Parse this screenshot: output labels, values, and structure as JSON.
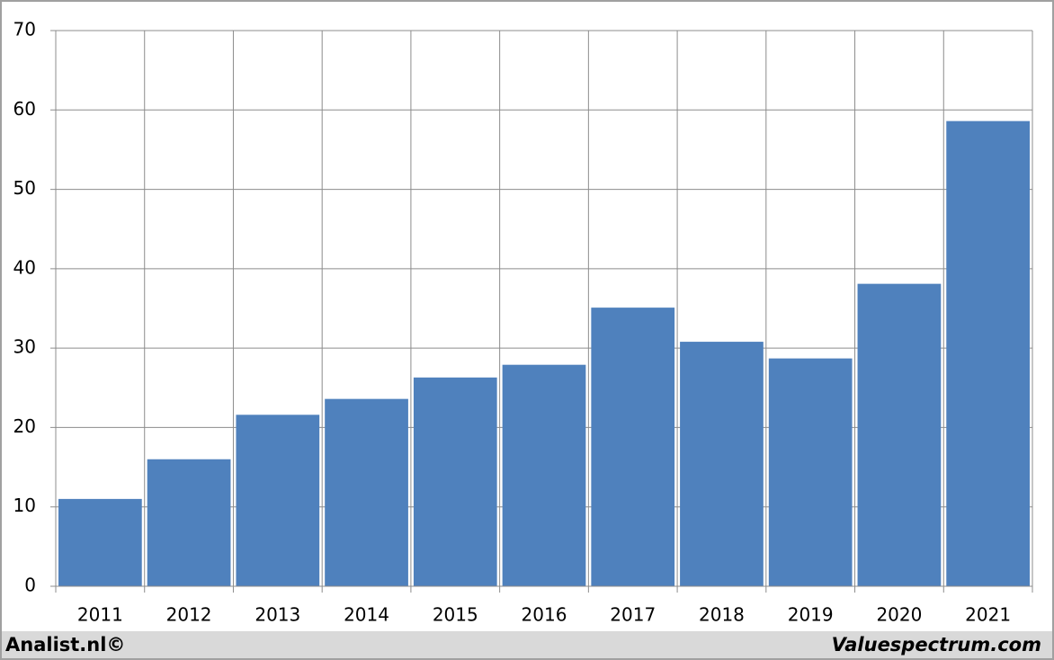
{
  "chart_data": {
    "type": "bar",
    "categories": [
      "2011",
      "2012",
      "2013",
      "2014",
      "2015",
      "2016",
      "2017",
      "2018",
      "2019",
      "2020",
      "2021"
    ],
    "values": [
      11.0,
      16.0,
      21.6,
      23.6,
      26.3,
      27.9,
      35.1,
      30.8,
      28.7,
      38.1,
      58.6
    ],
    "color": "#4f81bd",
    "ylim": [
      0,
      70
    ],
    "yticks": [
      0,
      10,
      20,
      30,
      40,
      50,
      60,
      70
    ],
    "grid": true,
    "footer_left": "Analist.nl©",
    "footer_right": "Valuespectrum.com"
  }
}
